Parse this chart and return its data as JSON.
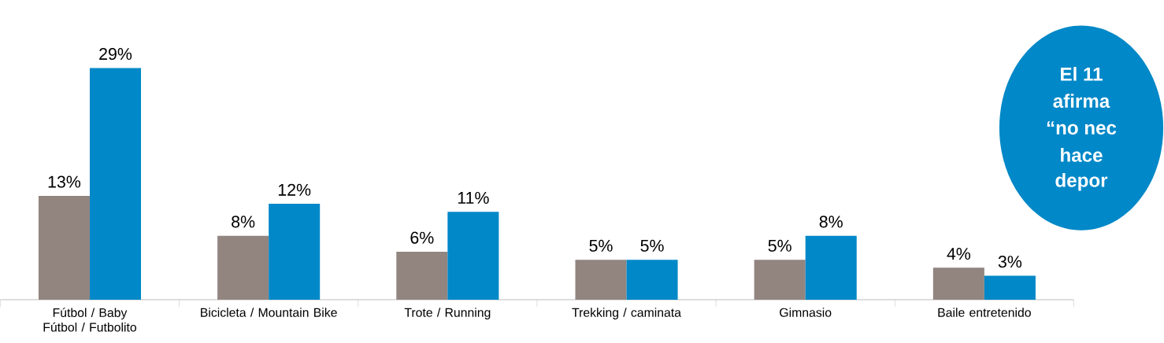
{
  "chart_data": {
    "type": "bar",
    "categories": [
      "Fútbol / Baby Fútbol / Futbolito",
      "Bicicleta / Mountain Bike",
      "Trote / Running",
      "Trekking / caminata",
      "Gimnasio",
      "Baile entretenido"
    ],
    "series": [
      {
        "color": "#928580",
        "values": [
          13,
          8,
          6,
          5,
          5,
          4
        ],
        "value_labels": [
          "13%",
          "8%",
          "6%",
          "5%",
          "5%",
          "4%"
        ]
      },
      {
        "color": "#0088c8",
        "values": [
          29,
          12,
          11,
          5,
          8,
          3
        ],
        "value_labels": [
          "29%",
          "12%",
          "11%",
          "5%",
          "8%",
          "3%"
        ]
      }
    ],
    "annotations": [
      "El 11",
      "afirma",
      "“no nec",
      "hace",
      "depor"
    ]
  }
}
